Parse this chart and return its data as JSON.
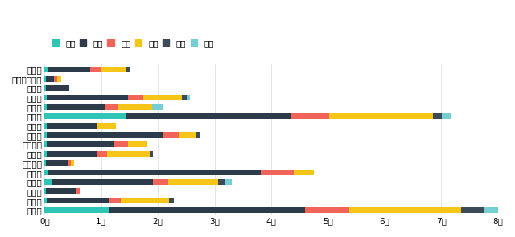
{
  "cities": [
    "郑州市",
    "许昌市",
    "信阳市",
    "新乡市",
    "商丘市",
    "三门峡市",
    "濮阳市",
    "平顶山市",
    "南阳市",
    "漯河市",
    "洛阳市",
    "开封市",
    "焦作市",
    "鹤壁市",
    "河南省省直辖",
    "安阳市"
  ],
  "brands": [
    "长安",
    "五菱",
    "奇瑞",
    "欧拉",
    "哪吒",
    "零跑"
  ],
  "colors": [
    "#2EC4B6",
    "#2D3A4A",
    "#F0645A",
    "#F5C518",
    "#3D4A57",
    "#74CED4"
  ],
  "data": {
    "安阳市": [
      70,
      730,
      200,
      430,
      70,
      0
    ],
    "河南省省直辖": [
      30,
      130,
      70,
      60,
      0,
      0
    ],
    "鹤壁市": [
      30,
      400,
      0,
      0,
      0,
      0
    ],
    "焦作市": [
      50,
      1430,
      270,
      680,
      90,
      50
    ],
    "开封市": [
      35,
      1030,
      240,
      600,
      0,
      185
    ],
    "洛阳市": [
      1450,
      2900,
      680,
      1820,
      160,
      160
    ],
    "漯河市": [
      35,
      880,
      0,
      340,
      0,
      0
    ],
    "南阳市": [
      55,
      2050,
      270,
      290,
      70,
      0
    ],
    "平顶山市": [
      50,
      1180,
      240,
      340,
      0,
      0
    ],
    "濮阳市": [
      50,
      870,
      190,
      760,
      40,
      0
    ],
    "三门峡市": [
      25,
      390,
      55,
      45,
      0,
      0
    ],
    "商丘市": [
      70,
      3750,
      580,
      360,
      0,
      0
    ],
    "新乡市": [
      140,
      1780,
      260,
      890,
      110,
      120
    ],
    "信阳市": [
      25,
      530,
      75,
      0,
      0,
      0
    ],
    "许昌市": [
      55,
      1080,
      210,
      850,
      90,
      0
    ],
    "郑州市": [
      1150,
      3450,
      780,
      1980,
      390,
      440
    ]
  },
  "xlim": [
    0,
    8000
  ],
  "xticks": [
    0,
    1000,
    2000,
    3000,
    4000,
    5000,
    6000,
    7000,
    8000
  ],
  "xticklabels": [
    "0千",
    "1千",
    "2千",
    "3千",
    "4千",
    "5千",
    "6千",
    "7千",
    "8千"
  ],
  "bg_color": "#FFFFFF",
  "grid_color": "#E5E5E5",
  "tick_fontsize": 7.5,
  "legend_fontsize": 7.5,
  "bar_height": 0.62
}
